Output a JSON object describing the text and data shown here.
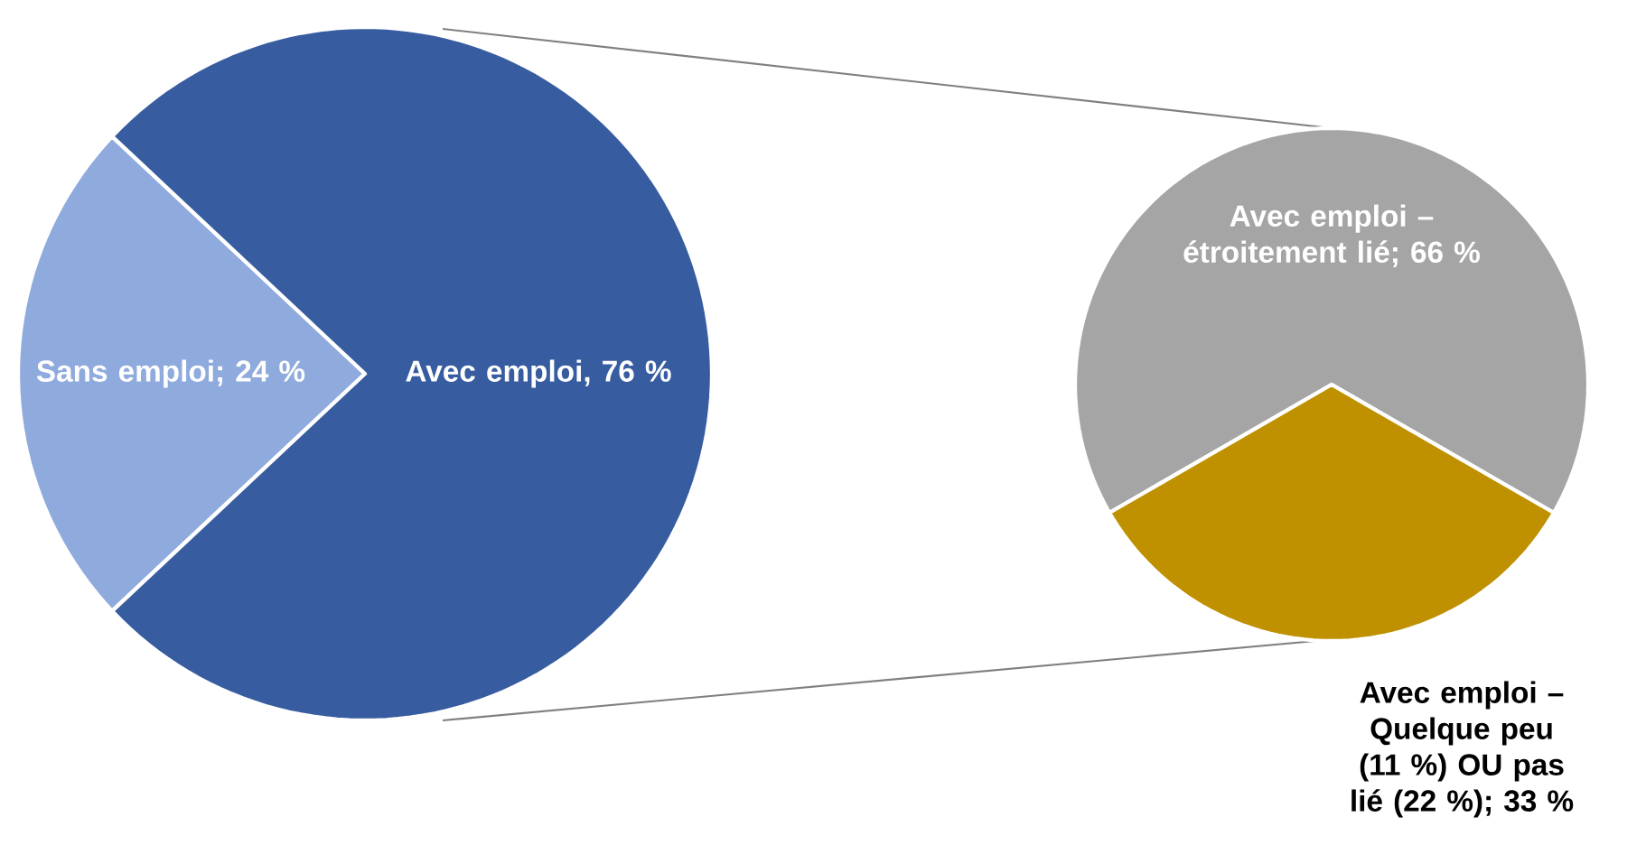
{
  "chart_data": [
    {
      "type": "pie",
      "categories": [
        "Sans emploi; 24 %",
        "Avec emploi, 76 %"
      ],
      "values": [
        24,
        76
      ],
      "colors": [
        "#8faadc",
        "#375c9f"
      ]
    },
    {
      "type": "pie",
      "categories": [
        "Avec emploi – étroitement lié; 66 %",
        "Avec emploi – Quelque peu (11 %) OU pas lié (22 %); 33 %"
      ],
      "values": [
        66,
        33
      ],
      "colors": [
        "#a5a5a5",
        "#bf9000"
      ]
    }
  ]
}
